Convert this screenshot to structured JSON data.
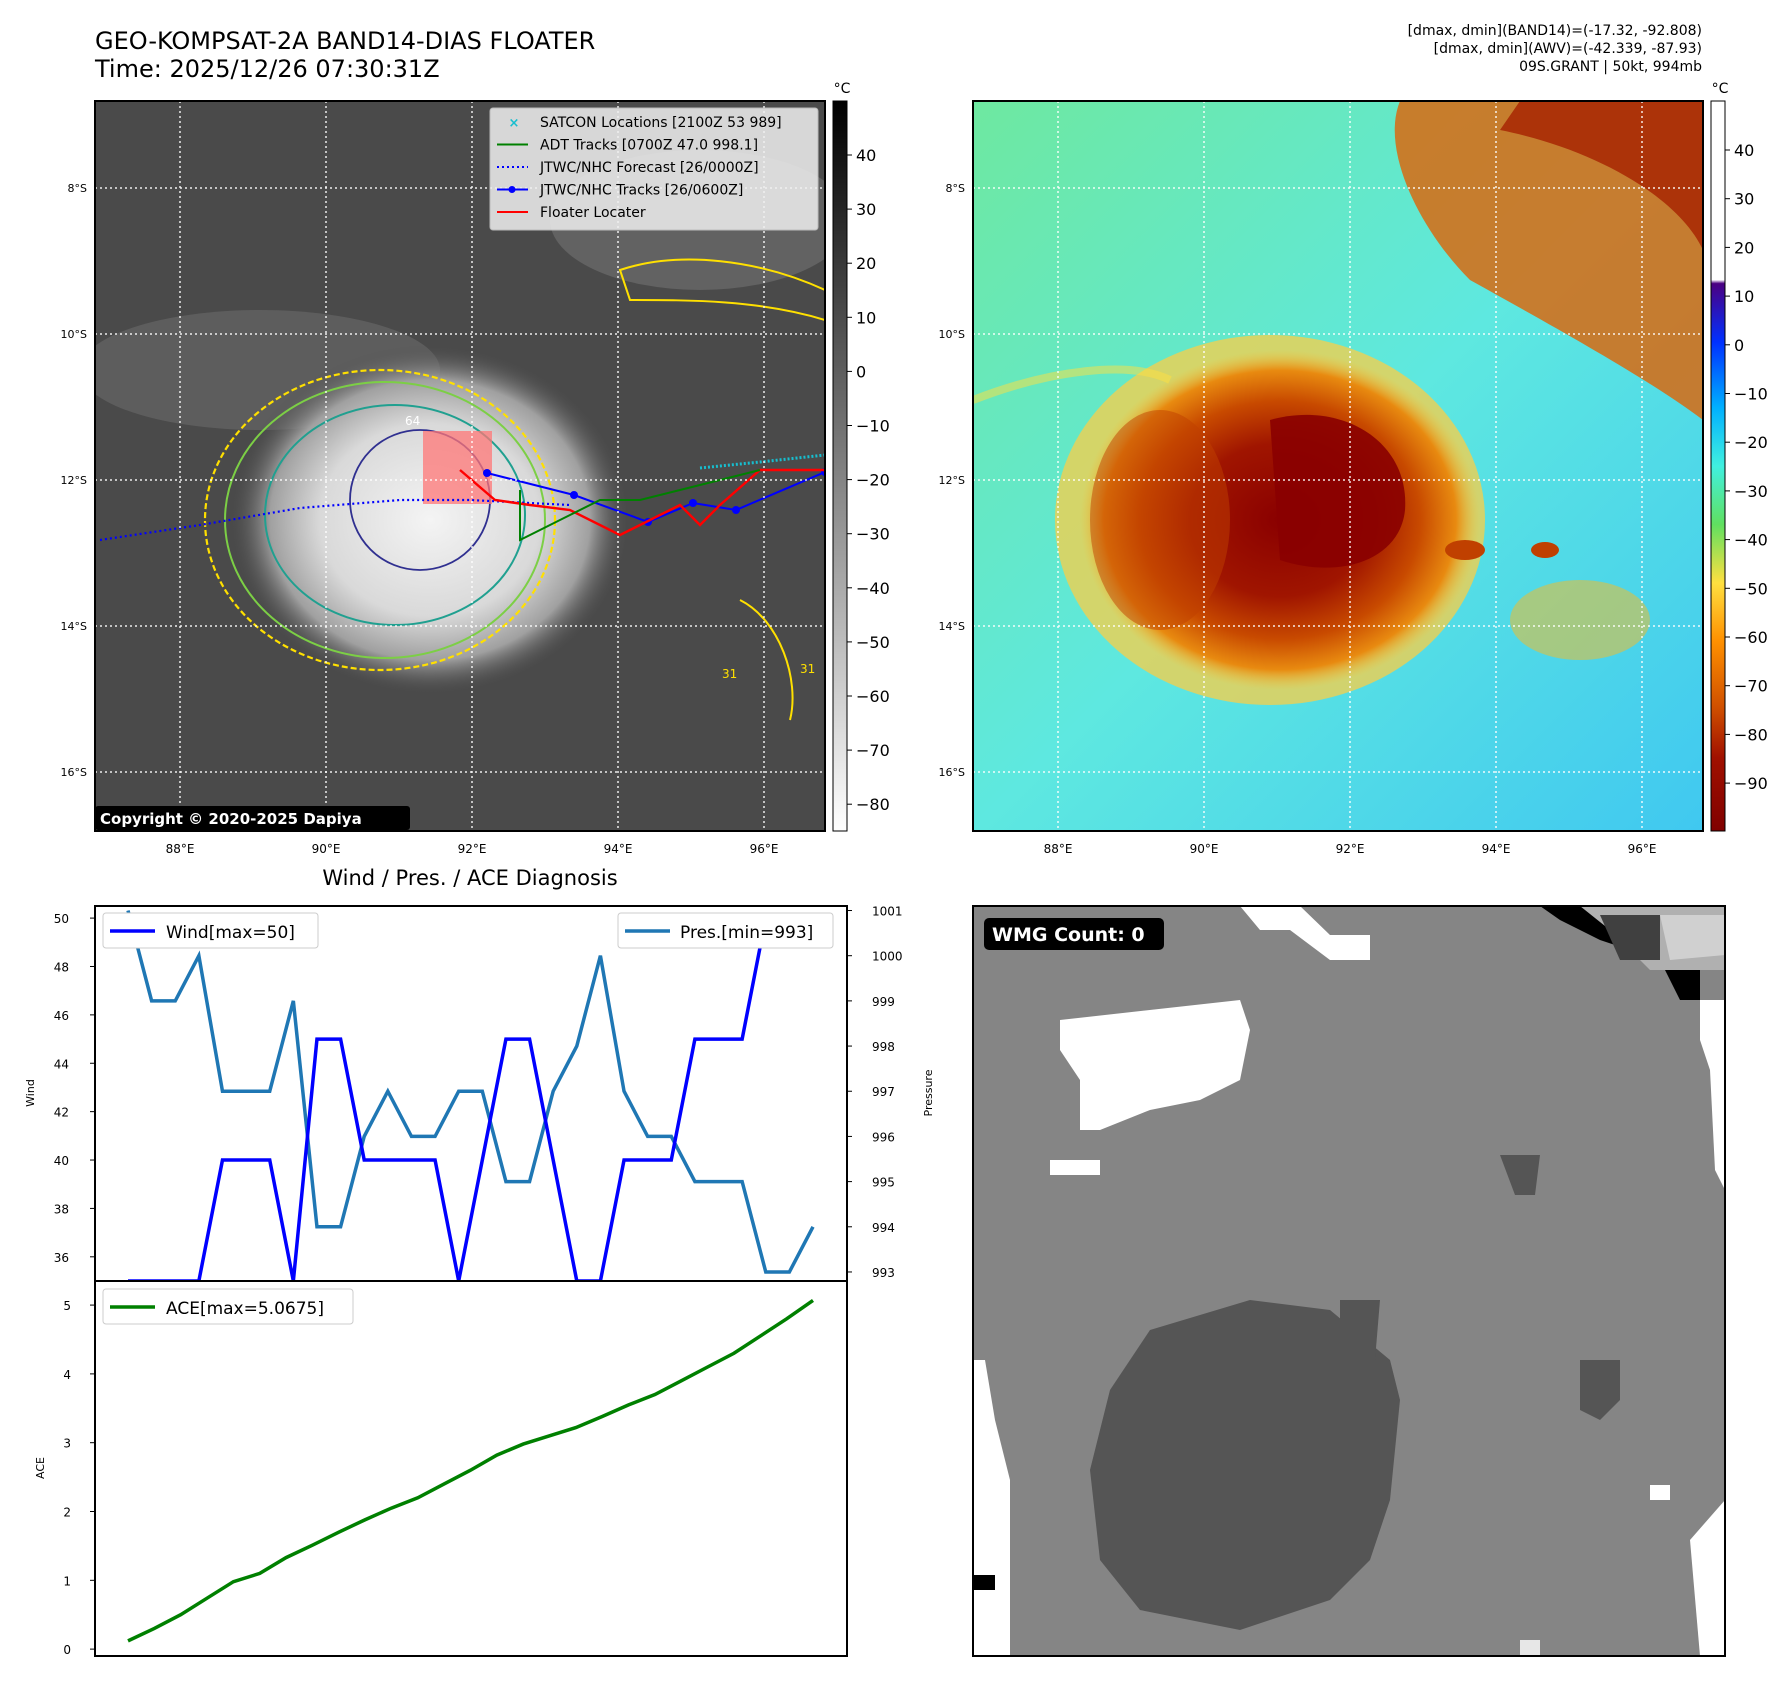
{
  "header": {
    "title": "GEO-KOMPSAT-2A BAND14-DIAS FLOATER",
    "time": "Time: 2025/12/26 07:30:31Z",
    "stats_band14": "[dmax, dmin](BAND14)=(-17.32, -92.808)",
    "stats_awv": "[dmax, dmin](AWV)=(-42.339, -87.93)",
    "storm": "09S.GRANT | 50kt, 994mb"
  },
  "map_common": {
    "lat_labels": [
      "8°S",
      "10°S",
      "12°S",
      "14°S",
      "16°S"
    ],
    "lon_labels": [
      "88°E",
      "90°E",
      "92°E",
      "94°E",
      "96°E"
    ]
  },
  "map_ir": {
    "legend": [
      {
        "label": "SATCON Locations [2100Z 53 989]",
        "color": "#17becf"
      },
      {
        "label": "ADT Tracks [0700Z 47.0 998.1]",
        "color": "#008000"
      },
      {
        "label": "JTWC/NHC Forecast [26/0000Z]",
        "color": "#0000ff"
      },
      {
        "label": "JTWC/NHC Tracks [26/0600Z]",
        "color": "#0000ff"
      },
      {
        "label": "Floater Locater",
        "color": "#ff0000"
      }
    ],
    "copyright": "Copyright © 2020-2025 Dapiya",
    "contour_labels": [
      "64",
      "31",
      "31"
    ],
    "colorbar_unit": "°C",
    "colorbar_ticks": [
      "40",
      "30",
      "20",
      "10",
      "0",
      "−10",
      "−20",
      "−30",
      "−40",
      "−50",
      "−60",
      "−70",
      "−80"
    ]
  },
  "map_color": {
    "colorbar_unit": "°C",
    "colorbar_ticks": [
      "40",
      "30",
      "20",
      "10",
      "0",
      "−10",
      "−20",
      "−30",
      "−40",
      "−50",
      "−60",
      "−70",
      "−80",
      "−90"
    ]
  },
  "diag_title": "Wind / Pres. / ACE Diagnosis",
  "chart_data": [
    {
      "type": "line",
      "title": "Wind / Pres. / ACE Diagnosis",
      "ylabel": "Wind",
      "ylabel_right": "Pressure",
      "ylim": [
        35,
        50.5
      ],
      "ylim_right": [
        992.8,
        1001.1
      ],
      "yticks": [
        36,
        38,
        40,
        42,
        44,
        46,
        48,
        50
      ],
      "yticks_right": [
        993,
        994,
        995,
        996,
        997,
        998,
        999,
        1000,
        1001
      ],
      "legend_placement": "top-left / top-right",
      "series": [
        {
          "name": "Wind[max=50]",
          "axis": "left",
          "color": "#0000ff",
          "values": [
            35,
            35,
            35,
            35,
            40,
            40,
            40,
            35,
            45,
            45,
            40,
            40,
            40,
            40,
            35,
            40,
            45,
            45,
            40,
            35,
            35,
            40,
            40,
            40,
            45,
            45,
            45,
            50,
            50,
            50
          ]
        },
        {
          "name": "Pres.[min=993]",
          "axis": "right",
          "color": "#1f77b4",
          "values": [
            1001,
            999,
            999,
            1000,
            997,
            997,
            997,
            999,
            994,
            994,
            996,
            997,
            996,
            996,
            997,
            997,
            995,
            995,
            997,
            998,
            1000,
            997,
            996,
            996,
            995,
            995,
            995,
            993,
            993,
            994
          ]
        }
      ]
    },
    {
      "type": "line",
      "ylabel": "ACE",
      "ylim": [
        -0.1,
        5.35
      ],
      "yticks": [
        0,
        1,
        2,
        3,
        4,
        5
      ],
      "series": [
        {
          "name": "ACE[max=5.0675]",
          "color": "#008000",
          "values": [
            0.12,
            0.3,
            0.5,
            0.74,
            0.98,
            1.1,
            1.33,
            1.51,
            1.7,
            1.88,
            2.05,
            2.2,
            2.4,
            2.6,
            2.82,
            2.98,
            3.1,
            3.22,
            3.38,
            3.55,
            3.7,
            3.9,
            4.1,
            4.3,
            4.55,
            4.8,
            5.0675
          ]
        }
      ]
    }
  ],
  "wmg": {
    "badge": "WMG Count: 0"
  }
}
